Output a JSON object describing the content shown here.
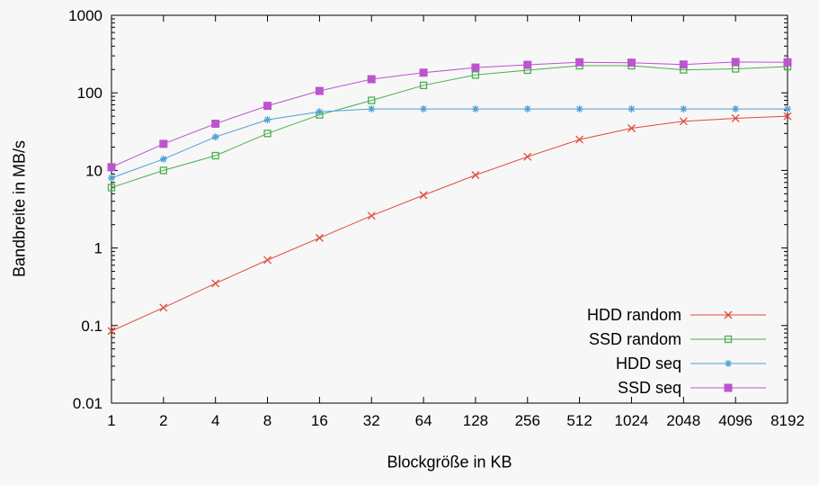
{
  "chart_data": {
    "type": "line",
    "xlabel": "Blockgröße in KB",
    "ylabel": "Bandbreite in MB/s",
    "xscale": "log2",
    "yscale": "log10",
    "xlim": [
      1,
      8192
    ],
    "ylim": [
      0.01,
      1000
    ],
    "x": [
      1,
      2,
      4,
      8,
      16,
      32,
      64,
      128,
      256,
      512,
      1024,
      2048,
      4096,
      8192
    ],
    "xtick_labels": [
      "1",
      "2",
      "4",
      "8",
      "16",
      "32",
      "64",
      "128",
      "256",
      "512",
      "1024",
      "2048",
      "4096",
      "8192"
    ],
    "yticks": [
      0.01,
      0.1,
      1,
      10,
      100,
      1000
    ],
    "ytick_labels": [
      "0.01",
      "0.1",
      "1",
      "10",
      "100",
      "1000"
    ],
    "grid": false,
    "legend_position": "bottom-right-inside",
    "series": [
      {
        "name": "HDD random",
        "color": "#e04a3a",
        "marker": "x",
        "values": [
          0.085,
          0.17,
          0.35,
          0.7,
          1.35,
          2.6,
          4.8,
          8.7,
          15,
          25,
          35,
          43,
          47,
          50
        ]
      },
      {
        "name": "SSD random",
        "color": "#4bae4f",
        "marker": "square-open",
        "values": [
          6,
          10,
          15.5,
          30,
          52,
          80,
          125,
          170,
          196,
          224,
          224,
          198,
          204,
          218
        ]
      },
      {
        "name": "HDD seq",
        "color": "#4c9fd6",
        "marker": "asterisk",
        "values": [
          8,
          14,
          27,
          45,
          57,
          62,
          62,
          62,
          62,
          62,
          62,
          62,
          62,
          62
        ]
      },
      {
        "name": "SSD seq",
        "color": "#bc54d0",
        "marker": "square-filled",
        "values": [
          11,
          22,
          40,
          68,
          106,
          150,
          182,
          212,
          230,
          248,
          245,
          232,
          250,
          248
        ]
      }
    ]
  }
}
